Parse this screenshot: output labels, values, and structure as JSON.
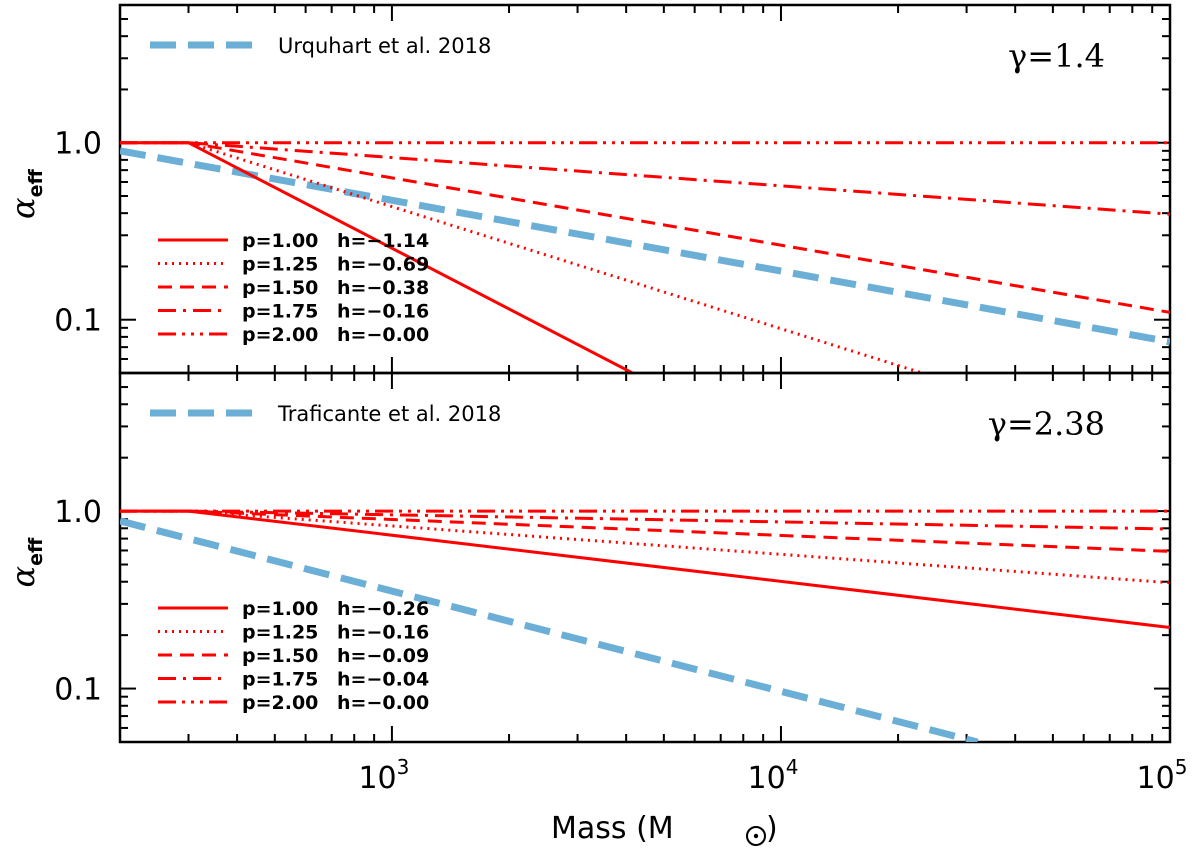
{
  "chart_data": [
    {
      "type": "line",
      "panel": "top",
      "xscale": "log",
      "yscale": "log",
      "xlim": [
        200,
        100000
      ],
      "ylim": [
        0.05,
        6
      ],
      "ylabel_symbol": "α",
      "ylabel_sub": "eff",
      "ytick_labels": [
        "1.0",
        "0.1"
      ],
      "ytick_values": [
        1.0,
        0.1
      ],
      "annotation": "γ=1.4",
      "reference": {
        "name": "Urquhart et al. 2018",
        "color": "#6baed6",
        "x": [
          200,
          100000
        ],
        "y": [
          0.9,
          0.075
        ]
      },
      "series": [
        {
          "name": "p=1.00",
          "p_label": "p=1.00",
          "h_label": "h=−1.14",
          "h": -1.14,
          "style": "solid",
          "x_start": 300
        },
        {
          "name": "p=1.25",
          "p_label": "p=1.25",
          "h_label": "h=−0.69",
          "h": -0.69,
          "style": "dotted",
          "x_start": 300
        },
        {
          "name": "p=1.50",
          "p_label": "p=1.50",
          "h_label": "h=−0.38",
          "h": -0.38,
          "style": "dashed",
          "x_start": 300
        },
        {
          "name": "p=1.75",
          "p_label": "p=1.75",
          "h_label": "h=−0.16",
          "h": -0.16,
          "style": "dashdot",
          "x_start": 300
        },
        {
          "name": "p=2.00",
          "p_label": "p=2.00",
          "h_label": "h=−0.00",
          "h": 0.0,
          "style": "dashdotdotdot",
          "x_start": 300
        }
      ]
    },
    {
      "type": "line",
      "panel": "bottom",
      "xscale": "log",
      "yscale": "log",
      "xlim": [
        200,
        100000
      ],
      "ylim": [
        0.05,
        6
      ],
      "ylabel_symbol": "α",
      "ylabel_sub": "eff",
      "ytick_labels": [
        "1.0",
        "0.1"
      ],
      "ytick_values": [
        1.0,
        0.1
      ],
      "annotation": "γ=2.38",
      "xlabel_text": "Mass (M",
      "xlabel_end": ")",
      "xtick_values": [
        1000,
        10000,
        100000
      ],
      "xtick_base": "10",
      "xtick_exps": [
        "3",
        "4",
        "5"
      ],
      "reference": {
        "name": "Traficante et al. 2018",
        "color": "#6baed6",
        "x": [
          200,
          32000
        ],
        "y": [
          0.88,
          0.05
        ]
      },
      "series": [
        {
          "name": "p=1.00",
          "p_label": "p=1.00",
          "h_label": "h=−0.26",
          "h": -0.26,
          "style": "solid",
          "x_start": 300
        },
        {
          "name": "p=1.25",
          "p_label": "p=1.25",
          "h_label": "h=−0.16",
          "h": -0.16,
          "style": "dotted",
          "x_start": 300
        },
        {
          "name": "p=1.50",
          "p_label": "p=1.50",
          "h_label": "h=−0.09",
          "h": -0.09,
          "style": "dashed",
          "x_start": 300
        },
        {
          "name": "p=1.75",
          "p_label": "p=1.75",
          "h_label": "h=−0.04",
          "h": -0.04,
          "style": "dashdot",
          "x_start": 300
        },
        {
          "name": "p=2.00",
          "p_label": "p=2.00",
          "h_label": "h=−0.00",
          "h": 0.0,
          "style": "dashdotdotdot",
          "x_start": 300
        }
      ]
    }
  ],
  "colors": {
    "series": "#ff0000",
    "reference": "#6baed6",
    "axis": "#000000"
  }
}
